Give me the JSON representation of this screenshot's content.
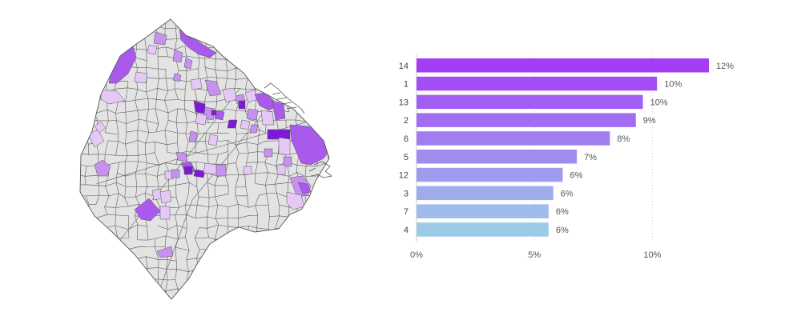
{
  "colors": {
    "map_base": "#e3e3e3",
    "map_border": "#555555",
    "map_light": "#e6c8f7",
    "map_mid": "#c792ef",
    "map_strong": "#a95aec",
    "map_dark": "#7d19d9",
    "gridline": "#cfcfcf",
    "bar_top": "#a43ef5",
    "bar_bottom": "#9ccbea"
  },
  "map": {
    "highlight_levels": [
      "light",
      "mid",
      "strong",
      "dark"
    ]
  },
  "chart_data": {
    "type": "bar",
    "orientation": "horizontal",
    "categories": [
      "14",
      "1",
      "13",
      "2",
      "6",
      "5",
      "12",
      "3",
      "7",
      "4"
    ],
    "values": [
      12.4,
      10.2,
      9.6,
      9.3,
      8.2,
      6.8,
      6.2,
      5.8,
      5.6,
      5.6
    ],
    "data_labels": [
      "12%",
      "10%",
      "10%",
      "9%",
      "8%",
      "7%",
      "6%",
      "6%",
      "6%",
      "6%"
    ],
    "x_ticks": [
      0,
      5,
      10
    ],
    "x_tick_labels": [
      "0%",
      "5%",
      "10%"
    ],
    "xlim": [
      0,
      12.4
    ],
    "grid": true,
    "legend": "none",
    "title": "",
    "xlabel": "",
    "ylabel": ""
  }
}
